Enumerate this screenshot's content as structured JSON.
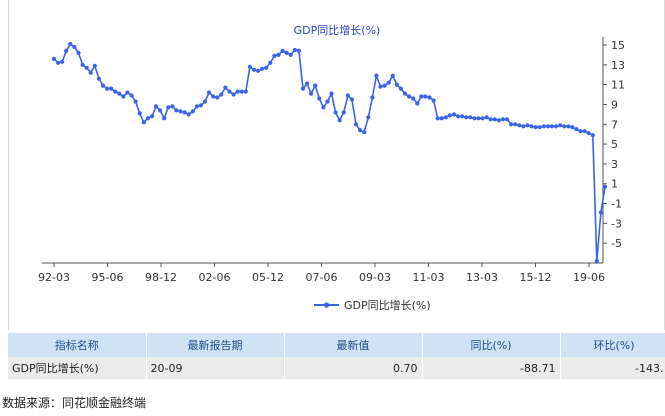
{
  "chart_data": {
    "type": "line",
    "title": "GDP同比增长(%)",
    "legend": [
      "GDP同比增长(%)"
    ],
    "legend_position": "bottom",
    "xlabel": "",
    "ylabel": "",
    "x_tick_labels": [
      "92-03",
      "95-06",
      "98-12",
      "02-06",
      "05-12",
      "07-06",
      "09-03",
      "11-03",
      "13-03",
      "15-12",
      "19-06"
    ],
    "y_ticks": [
      15,
      13,
      11,
      9,
      7,
      5,
      3,
      1,
      -1,
      -3,
      -5
    ],
    "ylim": [
      -7,
      15
    ],
    "grid": false,
    "series": [
      {
        "name": "GDP同比增长(%)",
        "color": "#3a63e8",
        "values": [
          13.6,
          13.2,
          13.3,
          14.4,
          15.1,
          14.8,
          14.2,
          13.0,
          12.7,
          12.2,
          12.9,
          11.6,
          10.9,
          10.6,
          10.6,
          10.3,
          10.1,
          9.8,
          10.2,
          9.9,
          9.3,
          8.1,
          7.2,
          7.6,
          7.8,
          8.8,
          8.4,
          7.6,
          8.7,
          8.8,
          8.4,
          8.3,
          8.2,
          8.0,
          8.3,
          8.8,
          8.9,
          9.3,
          10.2,
          9.8,
          9.7,
          10.0,
          10.7,
          10.3,
          10.0,
          10.3,
          10.3,
          10.3,
          12.8,
          12.5,
          12.4,
          12.6,
          12.7,
          13.2,
          13.9,
          14.0,
          14.4,
          14.2,
          14.0,
          14.5,
          14.4,
          10.6,
          11.1,
          10.1,
          10.9,
          9.6,
          8.7,
          9.3,
          10.1,
          8.2,
          7.4,
          8.2,
          9.9,
          9.5,
          7.0,
          6.4,
          6.2,
          7.7,
          9.7,
          11.9,
          10.8,
          10.9,
          11.2,
          11.9,
          11.0,
          10.6,
          10.1,
          9.8,
          9.6,
          9.1,
          9.8,
          9.8,
          9.7,
          9.4,
          7.6,
          7.6,
          7.7,
          7.9,
          8.0,
          7.8,
          7.8,
          7.7,
          7.7,
          7.6,
          7.6,
          7.6,
          7.7,
          7.5,
          7.5,
          7.4,
          7.5,
          7.5,
          7.0,
          7.0,
          6.9,
          6.8,
          6.9,
          6.8,
          6.7,
          6.7,
          6.8,
          6.8,
          6.8,
          6.8,
          6.9,
          6.8,
          6.8,
          6.7,
          6.5,
          6.3,
          6.3,
          6.1,
          5.9,
          -6.8,
          -1.9,
          0.7
        ]
      }
    ]
  },
  "table": {
    "headers": [
      "指标名称",
      "最新报告期",
      "最新值",
      "同比(%)",
      "环比(%)"
    ],
    "row": {
      "name": "GDP同比增长(%)",
      "period": "20-09",
      "latest": "0.70",
      "yoy": "-88.71",
      "mom": "-143."
    }
  },
  "footer": {
    "source": "数据来源：同花顺金融终端"
  }
}
